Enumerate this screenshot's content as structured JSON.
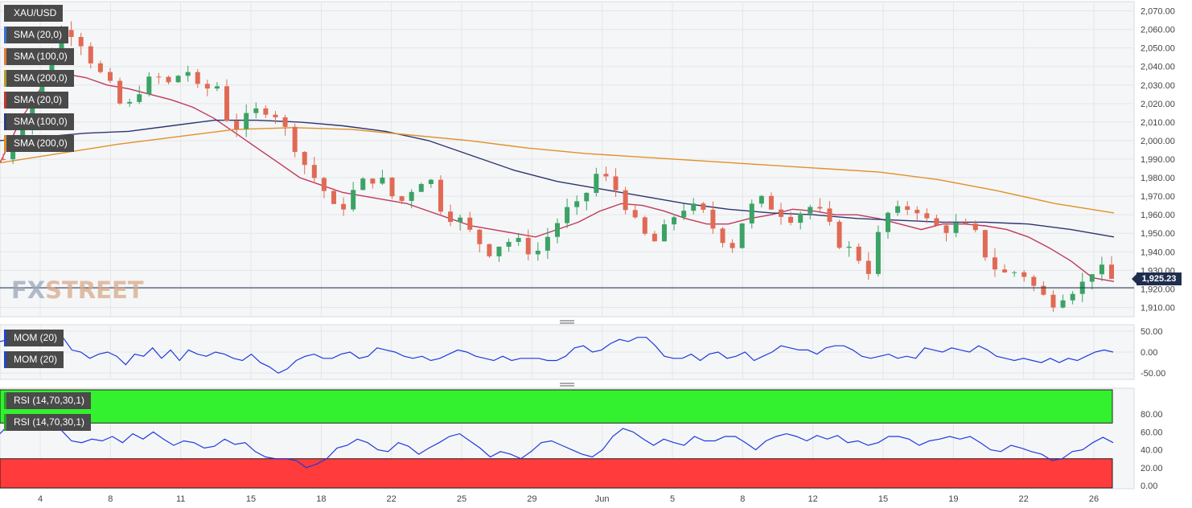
{
  "instrument": "XAU/USD",
  "current_price": "1,925.23",
  "watermark": {
    "part1": "FX",
    "part2": "STREET"
  },
  "legends": {
    "main": [
      {
        "label": "XAU/USD",
        "color": "#4a4a4a"
      },
      {
        "label": "SMA (20,0)",
        "color": "#3a6fd8"
      },
      {
        "label": "SMA (100,0)",
        "color": "#e07b39"
      },
      {
        "label": "SMA (200,0)",
        "color": "#b89c2c"
      },
      {
        "label": "SMA (20,0)",
        "color": "#c0392b"
      },
      {
        "label": "SMA (100,0)",
        "color": "#2a3a7a"
      },
      {
        "label": "SMA (200,0)",
        "color": "#e08b2a"
      }
    ],
    "mom": [
      {
        "label": "MOM (20)",
        "color": "#2244cc"
      },
      {
        "label": "MOM (20)",
        "color": "#2244cc"
      }
    ],
    "rsi": [
      {
        "label": "RSI (14,70,30,1)",
        "color": "#2aa02a"
      },
      {
        "label": "RSI (14,70,30,1)",
        "color": "#2aa02a"
      }
    ]
  },
  "chart_data": [
    {
      "type": "candlestick",
      "title": "XAU/USD",
      "x_tick_labels": [
        "4",
        "8",
        "11",
        "15",
        "18",
        "22",
        "25",
        "29",
        "Jun",
        "5",
        "8",
        "12",
        "15",
        "19",
        "22",
        "26"
      ],
      "y_tick_labels": [
        "1,910.00",
        "1,920.00",
        "1,930.00",
        "1,940.00",
        "1,950.00",
        "1,960.00",
        "1,970.00",
        "1,980.00",
        "1,990.00",
        "2,000.00",
        "2,010.00",
        "2,020.00",
        "2,030.00",
        "2,040.00",
        "2,050.00",
        "2,060.00",
        "2,070.00"
      ],
      "ylim": [
        1905,
        2075
      ],
      "current_price": 1925.23,
      "close_path": [
        1990,
        2005,
        2022,
        2045,
        2062,
        2055,
        2040,
        2030,
        2015,
        2028,
        2035,
        2030,
        2040,
        2025,
        2032,
        2005,
        2012,
        2018,
        2014,
        2000,
        1985,
        1975,
        1960,
        1972,
        1980,
        1978,
        1965,
        1975,
        1982,
        1960,
        1958,
        1948,
        1940,
        1946,
        1945,
        1938,
        1950,
        1962,
        1965,
        1982,
        1978,
        1965,
        1950,
        1945,
        1958,
        1965,
        1962,
        1950,
        1943,
        1963,
        1968,
        1962,
        1958,
        1965,
        1960,
        1945,
        1940,
        1930,
        1960,
        1962,
        1965,
        1955,
        1952,
        1955,
        1950,
        1933,
        1928,
        1930,
        1920,
        1912,
        1918,
        1922,
        1933,
        1925
      ],
      "series": [
        {
          "name": "SMA (20,0)",
          "color": "#c0395a",
          "values": [
            1988,
            2012,
            2030,
            2036,
            2034,
            2030,
            2028,
            2025,
            2022,
            2018,
            2012,
            2004,
            1996,
            1988,
            1980,
            1976,
            1972,
            1970,
            1968,
            1966,
            1962,
            1958,
            1954,
            1952,
            1950,
            1948,
            1952,
            1956,
            1962,
            1966,
            1965,
            1962,
            1958,
            1955,
            1955,
            1958,
            1960,
            1963,
            1962,
            1960,
            1960,
            1958,
            1955,
            1952,
            1955,
            1955,
            1954,
            1952,
            1948,
            1942,
            1935,
            1926,
            1924
          ]
        },
        {
          "name": "SMA (100,0)",
          "color": "#2c3570",
          "values": [
            2000,
            2002,
            2004,
            2005,
            2008,
            2011,
            2011,
            2010,
            2008,
            2005,
            2000,
            1992,
            1984,
            1978,
            1974,
            1970,
            1966,
            1963,
            1961,
            1960,
            1958,
            1957,
            1956,
            1956,
            1955,
            1952,
            1948
          ]
        },
        {
          "name": "SMA (200,0)",
          "color": "#e0902a",
          "values": [
            1988,
            1993,
            1998,
            2002,
            2006,
            2007,
            2006,
            2003,
            2000,
            1996,
            1993,
            1991,
            1989,
            1987,
            1985,
            1983,
            1979,
            1973,
            1966,
            1961
          ]
        }
      ]
    },
    {
      "type": "line",
      "title": "MOM (20)",
      "y_tick_labels": [
        "50.00",
        "0.00",
        "-50.00"
      ],
      "ylim": [
        -65,
        65
      ],
      "series": [
        {
          "name": "MOM (20)",
          "color": "#1e3ae0",
          "values": [
            25,
            30,
            40,
            50,
            45,
            40,
            50,
            35,
            5,
            0,
            -15,
            -5,
            0,
            -10,
            -30,
            -5,
            -10,
            10,
            -15,
            5,
            -20,
            5,
            -5,
            -10,
            0,
            -5,
            -15,
            -20,
            -5,
            -25,
            -35,
            -50,
            -40,
            -20,
            -10,
            -5,
            -15,
            -15,
            -5,
            0,
            -15,
            -10,
            10,
            5,
            0,
            -10,
            -15,
            -10,
            -20,
            -15,
            -5,
            5,
            0,
            -10,
            -15,
            -20,
            -10,
            -20,
            -15,
            -15,
            -15,
            -20,
            -20,
            -10,
            10,
            15,
            0,
            5,
            20,
            30,
            25,
            35,
            35,
            15,
            -10,
            -15,
            -15,
            -5,
            -20,
            -5,
            0,
            -15,
            -10,
            0,
            -20,
            -10,
            0,
            15,
            10,
            5,
            5,
            -5,
            10,
            15,
            15,
            5,
            -10,
            -15,
            -10,
            -5,
            -15,
            -10,
            -15,
            10,
            5,
            0,
            10,
            5,
            0,
            15,
            5,
            -10,
            -15,
            -20,
            -15,
            -20,
            -25,
            -15,
            -25,
            -15,
            -20,
            -10,
            0,
            5,
            0
          ]
        }
      ]
    },
    {
      "type": "line",
      "title": "RSI (14,70,30,1)",
      "y_tick_labels": [
        "80.00",
        "60.00",
        "40.00",
        "20.00",
        "0.00"
      ],
      "ylim": [
        0,
        100
      ],
      "bands": {
        "overbought": 70,
        "oversold": 30
      },
      "series": [
        {
          "name": "RSI (14,70,30,1)",
          "color": "#1e3ae0",
          "values": [
            58,
            70,
            75,
            72,
            68,
            78,
            62,
            50,
            48,
            52,
            50,
            55,
            48,
            58,
            52,
            60,
            52,
            45,
            50,
            48,
            42,
            44,
            52,
            46,
            48,
            38,
            32,
            30,
            30,
            28,
            20,
            24,
            30,
            42,
            45,
            52,
            48,
            40,
            38,
            48,
            44,
            35,
            42,
            48,
            55,
            58,
            50,
            42,
            32,
            38,
            35,
            30,
            38,
            48,
            50,
            45,
            40,
            35,
            32,
            40,
            55,
            64,
            60,
            52,
            45,
            52,
            48,
            45,
            55,
            50,
            50,
            55,
            55,
            48,
            40,
            50,
            55,
            58,
            55,
            50,
            56,
            52,
            56,
            48,
            50,
            45,
            48,
            55,
            55,
            52,
            45,
            50,
            52,
            55,
            52,
            55,
            48,
            40,
            38,
            45,
            42,
            38,
            35,
            28,
            30,
            38,
            40,
            48,
            54,
            48
          ]
        }
      ]
    }
  ]
}
